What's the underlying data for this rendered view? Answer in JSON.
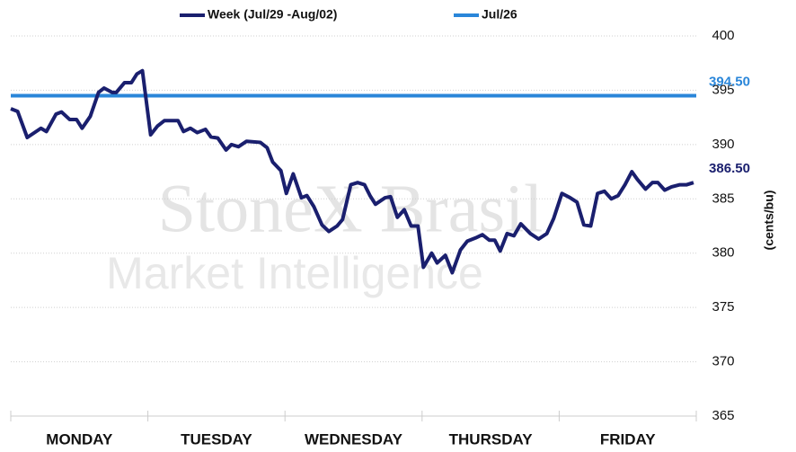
{
  "chart_data": {
    "type": "line",
    "watermark": [
      "StoneX Brasil",
      "Market Intelligence"
    ],
    "y_label": "(cents/bu)",
    "xlim": [
      0,
      5
    ],
    "xticks": [
      {
        "value": 0.5,
        "label": "MONDAY"
      },
      {
        "value": 1.5,
        "label": "TUESDAY"
      },
      {
        "value": 2.5,
        "label": "WEDNESDAY"
      },
      {
        "value": 3.5,
        "label": "THURSDAY"
      },
      {
        "value": 4.5,
        "label": "FRIDAY"
      }
    ],
    "ylim": [
      365,
      400
    ],
    "yticks": [
      365,
      370,
      375,
      380,
      385,
      390,
      395,
      400
    ],
    "grid": true,
    "legend": "top",
    "series": [
      {
        "name": "Week (Jul/29 -Aug/02)",
        "color": "#1a1f6e",
        "x": [
          0,
          0.05,
          0.12,
          0.22,
          0.26,
          0.33,
          0.37,
          0.43,
          0.48,
          0.52,
          0.58,
          0.64,
          0.68,
          0.74,
          0.77,
          0.83,
          0.88,
          0.92,
          0.96,
          1.02,
          1.07,
          1.12,
          1.22,
          1.26,
          1.31,
          1.36,
          1.42,
          1.46,
          1.51,
          1.57,
          1.61,
          1.66,
          1.72,
          1.82,
          1.87,
          1.91,
          1.97,
          2.01,
          2.06,
          2.12,
          2.16,
          2.21,
          2.27,
          2.32,
          2.38,
          2.42,
          2.48,
          2.53,
          2.58,
          2.62,
          2.66,
          2.73,
          2.77,
          2.82,
          2.87,
          2.92,
          2.97,
          3.01,
          3.07,
          3.11,
          3.17,
          3.22,
          3.28,
          3.33,
          3.39,
          3.44,
          3.49,
          3.53,
          3.57,
          3.62,
          3.67,
          3.72,
          3.79,
          3.85,
          3.91,
          3.96,
          4.02,
          4.08,
          4.13,
          4.18,
          4.23,
          4.28,
          4.33,
          4.38,
          4.43,
          4.48,
          4.53,
          4.57,
          4.63,
          4.68,
          4.72,
          4.77,
          4.82,
          4.88,
          4.93,
          4.98
        ],
        "values": [
          393.3,
          393.05,
          390.65,
          391.5,
          391.2,
          392.8,
          393.0,
          392.3,
          392.3,
          391.5,
          392.6,
          394.8,
          395.2,
          394.8,
          394.8,
          395.7,
          395.7,
          396.5,
          396.8,
          390.9,
          391.7,
          392.2,
          392.2,
          391.2,
          391.5,
          391.1,
          391.4,
          390.7,
          390.6,
          389.5,
          390.0,
          389.8,
          390.3,
          390.2,
          389.7,
          388.4,
          387.6,
          385.5,
          387.3,
          385.1,
          385.3,
          384.3,
          382.6,
          382.0,
          382.5,
          383.1,
          386.3,
          386.5,
          386.3,
          385.3,
          384.5,
          385.1,
          385.2,
          383.3,
          384.0,
          382.5,
          382.5,
          378.7,
          380.0,
          379.1,
          379.8,
          378.2,
          380.3,
          381.1,
          381.4,
          381.7,
          381.2,
          381.2,
          380.2,
          381.8,
          381.6,
          382.7,
          381.8,
          381.3,
          381.8,
          383.2,
          385.5,
          385.1,
          384.7,
          382.6,
          382.5,
          385.5,
          385.7,
          385.0,
          385.3,
          386.3,
          387.5,
          386.8,
          385.9,
          386.5,
          386.5,
          385.8,
          386.1,
          386.3,
          386.3,
          386.5
        ]
      },
      {
        "name": "Jul/26",
        "color": "#2a86d9",
        "x": [
          0,
          5
        ],
        "values": [
          394.5,
          394.5
        ]
      }
    ],
    "annotations": [
      {
        "label": "394.50",
        "value": 394.5,
        "color": "#2a86d9"
      },
      {
        "label": "386.50",
        "value": 386.5,
        "color": "#1a1f6e"
      }
    ]
  }
}
